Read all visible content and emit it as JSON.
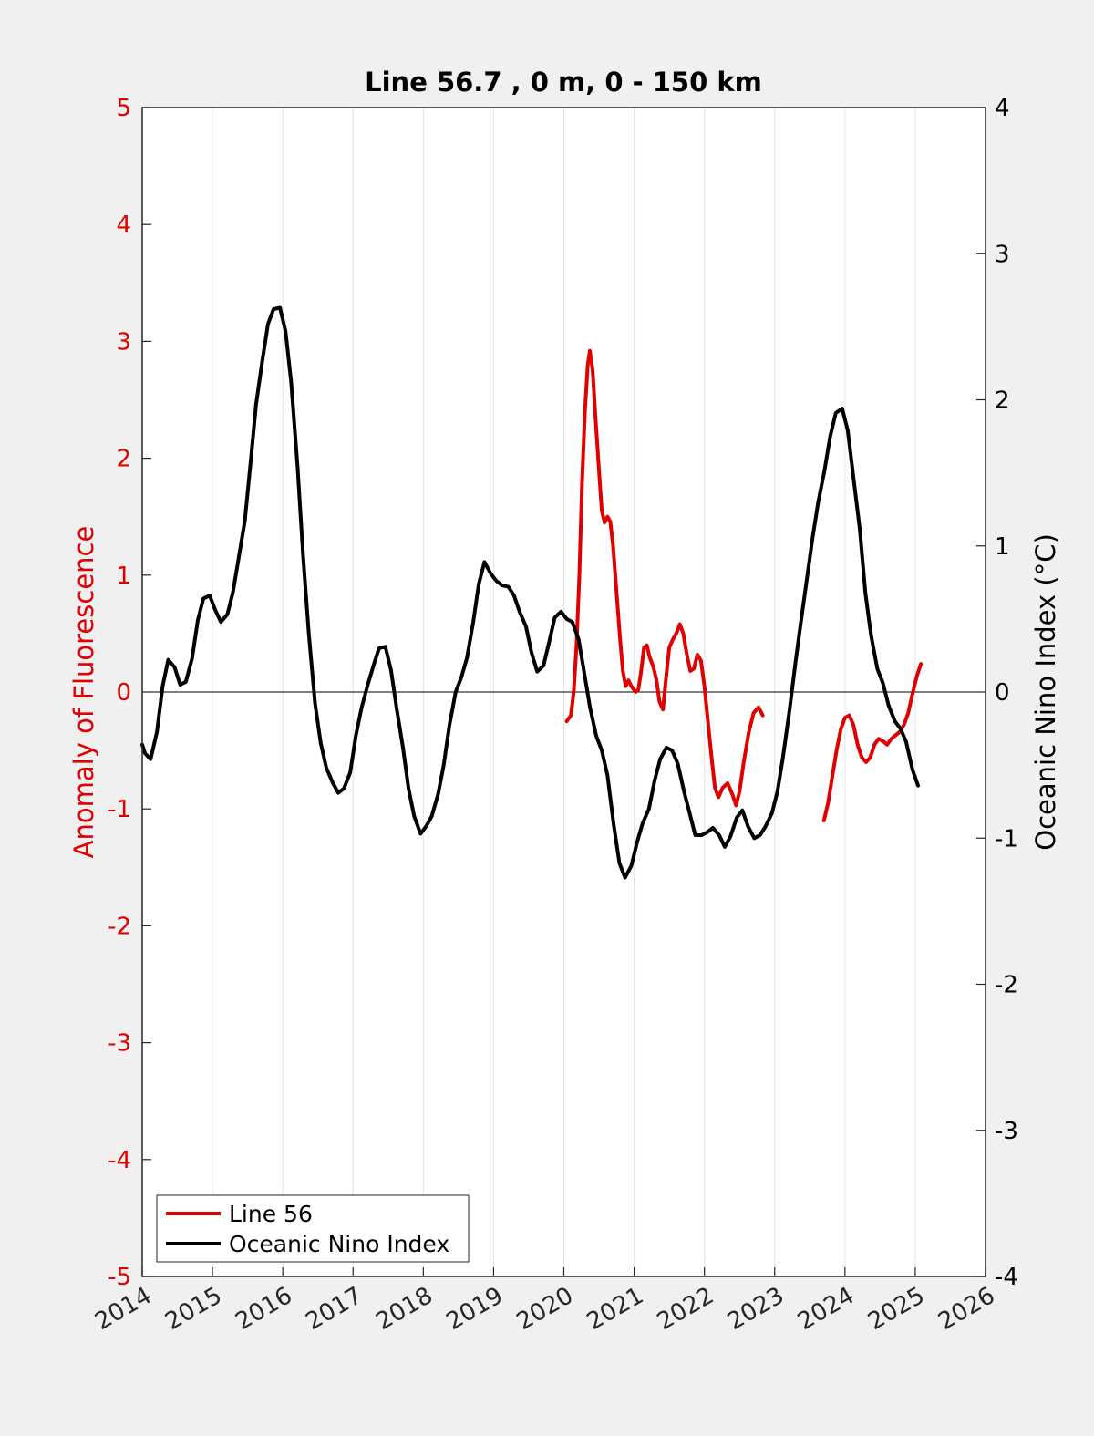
{
  "chart_data": {
    "type": "line",
    "title": "Line 56.7 , 0 m, 0 - 150 km",
    "x_ticks": [
      "2014",
      "2015",
      "2016",
      "2017",
      "2018",
      "2019",
      "2020",
      "2021",
      "2022",
      "2023",
      "2024",
      "2025",
      "2026"
    ],
    "xlim": [
      2014,
      2026
    ],
    "grid": "vertical",
    "legend_position": "bottom-left",
    "y_left": {
      "label": "Anomaly of Fluorescence",
      "lim": [
        -5,
        5
      ],
      "ticks": [
        "-5",
        "-4",
        "-3",
        "-2",
        "-1",
        "0",
        "1",
        "2",
        "3",
        "4",
        "5"
      ],
      "color": "#e00000"
    },
    "y_right": {
      "label": "Oceanic Nino Index (°C)",
      "lim": [
        -4,
        4
      ],
      "ticks": [
        "-4",
        "-3",
        "-2",
        "-1",
        "0",
        "1",
        "2",
        "3",
        "4"
      ],
      "color": "#000000"
    },
    "series": [
      {
        "name": "Line 56",
        "axis": "left",
        "color": "#e00000",
        "segments": [
          [
            [
              2020.04,
              -0.25
            ],
            [
              2020.1,
              -0.2
            ],
            [
              2020.14,
              0.0
            ],
            [
              2020.18,
              0.4
            ],
            [
              2020.22,
              1.0
            ],
            [
              2020.26,
              1.8
            ],
            [
              2020.3,
              2.4
            ],
            [
              2020.34,
              2.8
            ],
            [
              2020.37,
              2.92
            ],
            [
              2020.41,
              2.75
            ],
            [
              2020.45,
              2.35
            ],
            [
              2020.5,
              1.9
            ],
            [
              2020.54,
              1.55
            ],
            [
              2020.58,
              1.45
            ],
            [
              2020.62,
              1.5
            ],
            [
              2020.66,
              1.46
            ],
            [
              2020.7,
              1.25
            ],
            [
              2020.75,
              0.85
            ],
            [
              2020.8,
              0.45
            ],
            [
              2020.84,
              0.18
            ],
            [
              2020.88,
              0.05
            ],
            [
              2020.92,
              0.1
            ],
            [
              2020.96,
              0.05
            ],
            [
              2021.02,
              0.0
            ],
            [
              2021.06,
              0.02
            ],
            [
              2021.1,
              0.18
            ],
            [
              2021.14,
              0.38
            ],
            [
              2021.18,
              0.4
            ],
            [
              2021.22,
              0.3
            ],
            [
              2021.27,
              0.22
            ],
            [
              2021.32,
              0.1
            ],
            [
              2021.36,
              -0.08
            ],
            [
              2021.41,
              -0.15
            ],
            [
              2021.45,
              0.1
            ],
            [
              2021.5,
              0.38
            ],
            [
              2021.55,
              0.45
            ],
            [
              2021.6,
              0.5
            ],
            [
              2021.65,
              0.58
            ],
            [
              2021.7,
              0.5
            ],
            [
              2021.75,
              0.32
            ],
            [
              2021.8,
              0.18
            ],
            [
              2021.85,
              0.2
            ],
            [
              2021.9,
              0.32
            ],
            [
              2021.95,
              0.27
            ],
            [
              2022.0,
              0.05
            ],
            [
              2022.05,
              -0.25
            ],
            [
              2022.1,
              -0.55
            ],
            [
              2022.15,
              -0.82
            ],
            [
              2022.2,
              -0.9
            ],
            [
              2022.26,
              -0.82
            ],
            [
              2022.33,
              -0.78
            ],
            [
              2022.4,
              -0.88
            ],
            [
              2022.45,
              -0.97
            ],
            [
              2022.5,
              -0.85
            ],
            [
              2022.56,
              -0.6
            ],
            [
              2022.63,
              -0.35
            ],
            [
              2022.7,
              -0.18
            ],
            [
              2022.77,
              -0.13
            ],
            [
              2022.83,
              -0.2
            ]
          ],
          [
            [
              2023.7,
              -1.1
            ],
            [
              2023.76,
              -0.95
            ],
            [
              2023.82,
              -0.72
            ],
            [
              2023.88,
              -0.5
            ],
            [
              2023.94,
              -0.32
            ],
            [
              2024.0,
              -0.22
            ],
            [
              2024.06,
              -0.2
            ],
            [
              2024.12,
              -0.28
            ],
            [
              2024.18,
              -0.45
            ],
            [
              2024.24,
              -0.56
            ],
            [
              2024.3,
              -0.6
            ],
            [
              2024.36,
              -0.56
            ],
            [
              2024.42,
              -0.45
            ],
            [
              2024.48,
              -0.4
            ],
            [
              2024.54,
              -0.42
            ],
            [
              2024.6,
              -0.45
            ],
            [
              2024.66,
              -0.4
            ],
            [
              2024.72,
              -0.37
            ],
            [
              2024.78,
              -0.34
            ],
            [
              2024.84,
              -0.28
            ],
            [
              2024.9,
              -0.18
            ],
            [
              2024.96,
              -0.02
            ],
            [
              2025.02,
              0.13
            ],
            [
              2025.08,
              0.24
            ]
          ]
        ]
      },
      {
        "name": "Oceanic Nino Index",
        "axis": "right",
        "color": "#000000",
        "segments": [
          [
            [
              2014.0,
              -0.36
            ],
            [
              2014.04,
              -0.42
            ],
            [
              2014.12,
              -0.46
            ],
            [
              2014.21,
              -0.27
            ],
            [
              2014.29,
              0.04
            ],
            [
              2014.37,
              0.22
            ],
            [
              2014.46,
              0.17
            ],
            [
              2014.54,
              0.05
            ],
            [
              2014.62,
              0.07
            ],
            [
              2014.71,
              0.23
            ],
            [
              2014.79,
              0.49
            ],
            [
              2014.87,
              0.64
            ],
            [
              2014.96,
              0.66
            ],
            [
              2015.04,
              0.56
            ],
            [
              2015.12,
              0.48
            ],
            [
              2015.21,
              0.53
            ],
            [
              2015.29,
              0.68
            ],
            [
              2015.37,
              0.91
            ],
            [
              2015.46,
              1.17
            ],
            [
              2015.54,
              1.56
            ],
            [
              2015.62,
              1.97
            ],
            [
              2015.71,
              2.27
            ],
            [
              2015.79,
              2.52
            ],
            [
              2015.87,
              2.62
            ],
            [
              2015.96,
              2.63
            ],
            [
              2016.04,
              2.47
            ],
            [
              2016.12,
              2.12
            ],
            [
              2016.21,
              1.54
            ],
            [
              2016.29,
              0.93
            ],
            [
              2016.37,
              0.4
            ],
            [
              2016.46,
              -0.08
            ],
            [
              2016.54,
              -0.35
            ],
            [
              2016.62,
              -0.52
            ],
            [
              2016.71,
              -0.62
            ],
            [
              2016.79,
              -0.69
            ],
            [
              2016.87,
              -0.66
            ],
            [
              2016.96,
              -0.55
            ],
            [
              2017.04,
              -0.3
            ],
            [
              2017.12,
              -0.11
            ],
            [
              2017.21,
              0.05
            ],
            [
              2017.29,
              0.18
            ],
            [
              2017.37,
              0.3
            ],
            [
              2017.46,
              0.31
            ],
            [
              2017.54,
              0.15
            ],
            [
              2017.62,
              -0.11
            ],
            [
              2017.71,
              -0.38
            ],
            [
              2017.79,
              -0.66
            ],
            [
              2017.87,
              -0.85
            ],
            [
              2017.96,
              -0.97
            ],
            [
              2018.04,
              -0.92
            ],
            [
              2018.12,
              -0.85
            ],
            [
              2018.21,
              -0.7
            ],
            [
              2018.29,
              -0.5
            ],
            [
              2018.37,
              -0.23
            ],
            [
              2018.46,
              0.0
            ],
            [
              2018.54,
              0.1
            ],
            [
              2018.62,
              0.23
            ],
            [
              2018.71,
              0.48
            ],
            [
              2018.79,
              0.74
            ],
            [
              2018.87,
              0.89
            ],
            [
              2018.96,
              0.81
            ],
            [
              2019.04,
              0.76
            ],
            [
              2019.12,
              0.73
            ],
            [
              2019.21,
              0.72
            ],
            [
              2019.29,
              0.66
            ],
            [
              2019.37,
              0.55
            ],
            [
              2019.46,
              0.45
            ],
            [
              2019.54,
              0.27
            ],
            [
              2019.62,
              0.14
            ],
            [
              2019.71,
              0.18
            ],
            [
              2019.79,
              0.34
            ],
            [
              2019.87,
              0.51
            ],
            [
              2019.96,
              0.55
            ],
            [
              2020.04,
              0.5
            ],
            [
              2020.12,
              0.48
            ],
            [
              2020.21,
              0.36
            ],
            [
              2020.29,
              0.13
            ],
            [
              2020.37,
              -0.1
            ],
            [
              2020.46,
              -0.3
            ],
            [
              2020.54,
              -0.4
            ],
            [
              2020.62,
              -0.57
            ],
            [
              2020.71,
              -0.91
            ],
            [
              2020.79,
              -1.17
            ],
            [
              2020.87,
              -1.27
            ],
            [
              2020.96,
              -1.19
            ],
            [
              2021.04,
              -1.03
            ],
            [
              2021.12,
              -0.9
            ],
            [
              2021.21,
              -0.8
            ],
            [
              2021.29,
              -0.61
            ],
            [
              2021.37,
              -0.46
            ],
            [
              2021.46,
              -0.38
            ],
            [
              2021.54,
              -0.4
            ],
            [
              2021.62,
              -0.49
            ],
            [
              2021.71,
              -0.68
            ],
            [
              2021.79,
              -0.83
            ],
            [
              2021.87,
              -0.98
            ],
            [
              2021.96,
              -0.98
            ],
            [
              2022.04,
              -0.96
            ],
            [
              2022.12,
              -0.93
            ],
            [
              2022.21,
              -0.98
            ],
            [
              2022.29,
              -1.06
            ],
            [
              2022.37,
              -0.99
            ],
            [
              2022.46,
              -0.86
            ],
            [
              2022.54,
              -0.81
            ],
            [
              2022.62,
              -0.92
            ],
            [
              2022.71,
              -1.0
            ],
            [
              2022.79,
              -0.98
            ],
            [
              2022.87,
              -0.92
            ],
            [
              2022.96,
              -0.83
            ],
            [
              2023.04,
              -0.68
            ],
            [
              2023.12,
              -0.44
            ],
            [
              2023.21,
              -0.13
            ],
            [
              2023.29,
              0.18
            ],
            [
              2023.37,
              0.47
            ],
            [
              2023.46,
              0.78
            ],
            [
              2023.54,
              1.06
            ],
            [
              2023.62,
              1.3
            ],
            [
              2023.71,
              1.52
            ],
            [
              2023.79,
              1.75
            ],
            [
              2023.87,
              1.91
            ],
            [
              2023.96,
              1.94
            ],
            [
              2024.04,
              1.79
            ],
            [
              2024.12,
              1.47
            ],
            [
              2024.21,
              1.12
            ],
            [
              2024.29,
              0.68
            ],
            [
              2024.37,
              0.39
            ],
            [
              2024.46,
              0.16
            ],
            [
              2024.54,
              0.06
            ],
            [
              2024.62,
              -0.09
            ],
            [
              2024.71,
              -0.2
            ],
            [
              2024.79,
              -0.25
            ],
            [
              2024.87,
              -0.34
            ],
            [
              2024.96,
              -0.53
            ],
            [
              2025.04,
              -0.64
            ]
          ]
        ]
      }
    ]
  }
}
